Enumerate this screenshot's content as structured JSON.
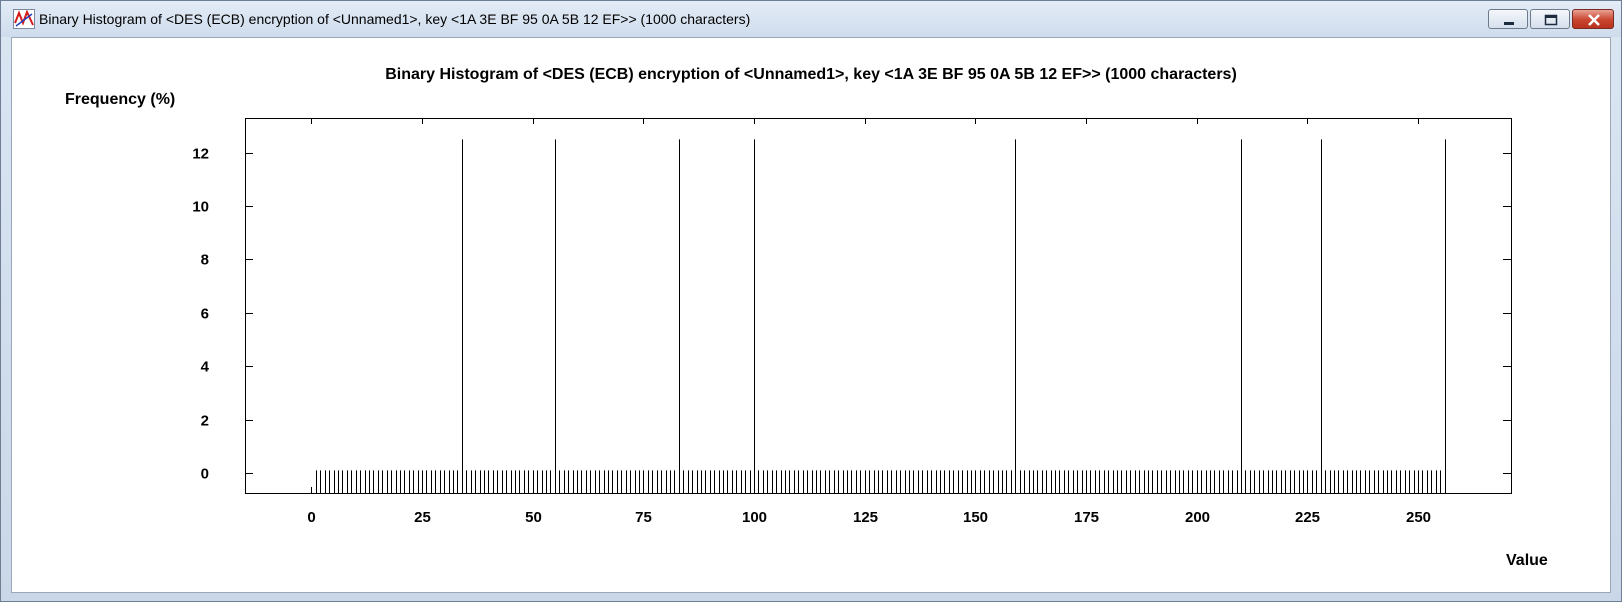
{
  "window": {
    "title": "Binary Histogram of <DES (ECB) encryption of <Unnamed1>, key <1A 3E BF 95 0A 5B 12 EF>> (1000 characters)",
    "icon": "cryptool-app-icon",
    "controls": {
      "minimize": "minimize-icon",
      "maximize": "maximize-icon",
      "close": "close-icon"
    }
  },
  "chart_data": {
    "type": "bar",
    "title": "Binary Histogram of <DES (ECB) encryption of <Unnamed1>, key <1A 3E BF 95 0A 5B 12 EF>> (1000 characters)",
    "xlabel": "Value",
    "ylabel": "Frequency (%)",
    "xlim": [
      -15,
      271
    ],
    "ylim": [
      -0.75,
      13.3
    ],
    "x_ticks": [
      0,
      25,
      50,
      75,
      100,
      125,
      150,
      175,
      200,
      225,
      250
    ],
    "y_ticks": [
      0,
      2,
      4,
      6,
      8,
      10,
      12
    ],
    "x_tick_labels": [
      "0",
      "25",
      "50",
      "75",
      "100",
      "125",
      "150",
      "175",
      "200",
      "225",
      "250"
    ],
    "y_tick_labels": [
      "0",
      "2",
      "4",
      "6",
      "8",
      "10",
      "12"
    ],
    "grid": false,
    "baseline_values": {
      "range": [
        1,
        255
      ],
      "value": 0.1
    },
    "peaks": [
      {
        "x": 34,
        "value": 12.5
      },
      {
        "x": 55,
        "value": 12.5
      },
      {
        "x": 83,
        "value": 12.5
      },
      {
        "x": 100,
        "value": 12.5
      },
      {
        "x": 159,
        "value": 12.5
      },
      {
        "x": 210,
        "value": 12.5
      },
      {
        "x": 228,
        "value": 12.5
      },
      {
        "x": 256,
        "value": 12.5
      }
    ],
    "bar_color": "#000000"
  }
}
